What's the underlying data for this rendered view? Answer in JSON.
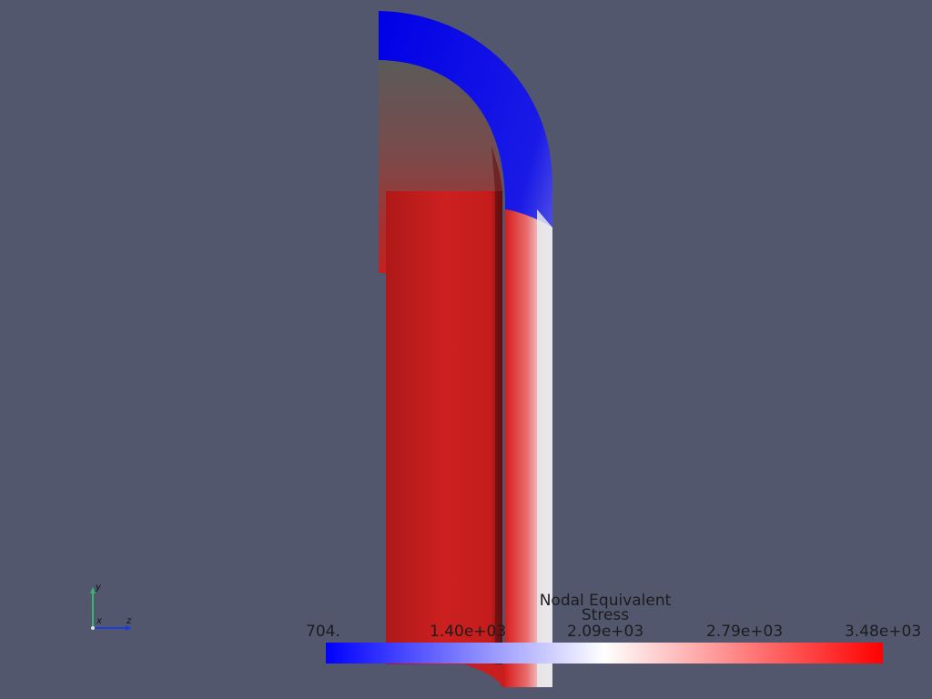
{
  "scalar_bar": {
    "title_line1": "Nodal Equivalent",
    "title_line2": "Stress",
    "ticks": [
      "704.",
      "1.40e+03",
      "2.09e+03",
      "2.79e+03",
      "3.48e+03"
    ],
    "range": [
      704,
      3480
    ],
    "colormap": [
      "#0000ff",
      "#ffffff",
      "#ff0000"
    ]
  },
  "orientation_axes": {
    "y_label": "y",
    "x_label": "x",
    "z_label": "z",
    "y_color": "#3cb371",
    "z_color": "#1e3cdc"
  },
  "background_color": "#52576e"
}
